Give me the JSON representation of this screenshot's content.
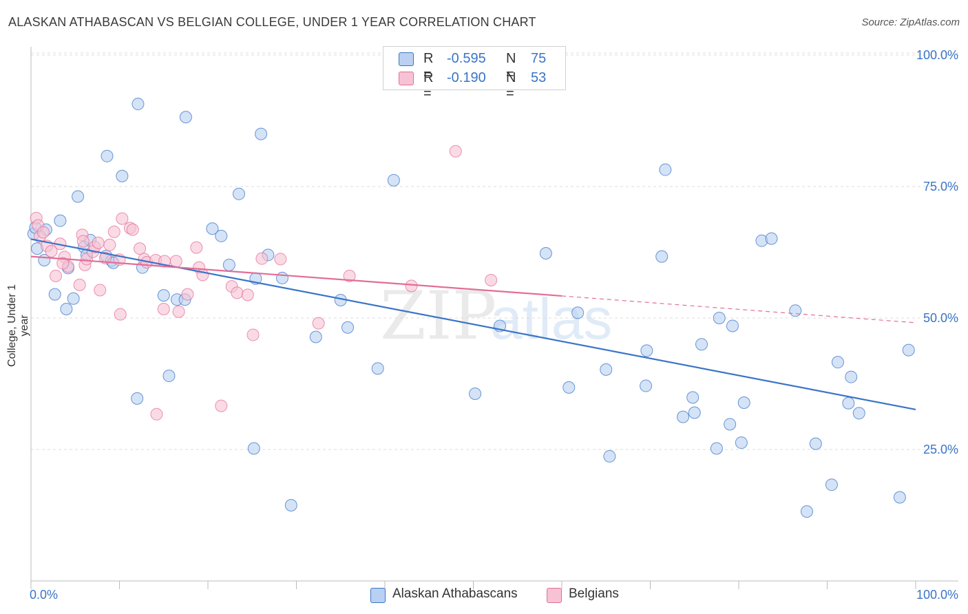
{
  "title": "ALASKAN ATHABASCAN VS BELGIAN COLLEGE, UNDER 1 YEAR CORRELATION CHART",
  "source": "Source: ZipAtlas.com",
  "colors": {
    "blue": "#3a74c7",
    "blue_fill": "#b9d0f2",
    "pink": "#e36d97",
    "pink_fill": "#f7c3d4",
    "grid": "#dddddd"
  },
  "legend_top": {
    "rows": [
      {
        "r_label": "R =",
        "r_value": "-0.595",
        "n_label": "N =",
        "n_value": "75"
      },
      {
        "r_label": "R =",
        "r_value": "-0.190",
        "n_label": "N =",
        "n_value": "53"
      }
    ]
  },
  "legend_bottom": {
    "series1": "Alaskan Athabascans",
    "series2": "Belgians"
  },
  "watermark": {
    "part1": "ZIP",
    "part2": "atlas"
  },
  "chart_data": {
    "type": "scatter",
    "title": "ALASKAN ATHABASCAN VS BELGIAN COLLEGE, UNDER 1 YEAR CORRELATION CHART",
    "xlabel": "",
    "ylabel": "College, Under 1 year",
    "xlim": [
      0,
      100
    ],
    "ylim": [
      0,
      105
    ],
    "x_tick_labels": [
      "0.0%",
      "100.0%"
    ],
    "y_tick_values": [
      100,
      75,
      50,
      25
    ],
    "y_tick_labels": [
      "100.0%",
      "75.0%",
      "50.0%",
      "25.0%"
    ],
    "grid": true,
    "series": [
      {
        "name": "Alaskan Athabascans",
        "r": -0.595,
        "n": 75,
        "trend": {
          "x": [
            0,
            100
          ],
          "y": [
            65.0,
            32.6
          ]
        },
        "points": [
          [
            0.3,
            66.0
          ],
          [
            0.7,
            63.2
          ],
          [
            1.5,
            61.0
          ],
          [
            1.7,
            66.8
          ],
          [
            2.7,
            54.5
          ],
          [
            3.3,
            68.5
          ],
          [
            4.0,
            51.7
          ],
          [
            4.2,
            59.5
          ],
          [
            4.8,
            53.7
          ],
          [
            5.3,
            73.1
          ],
          [
            6.0,
            63.5
          ],
          [
            6.3,
            62.0
          ],
          [
            6.7,
            64.8
          ],
          [
            8.5,
            61.8
          ],
          [
            8.6,
            80.8
          ],
          [
            9.1,
            60.9
          ],
          [
            9.3,
            60.5
          ],
          [
            10.3,
            77.0
          ],
          [
            12.0,
            34.7
          ],
          [
            12.1,
            90.7
          ],
          [
            12.6,
            59.6
          ],
          [
            15.0,
            54.3
          ],
          [
            15.6,
            39.0
          ],
          [
            16.5,
            53.5
          ],
          [
            17.4,
            53.5
          ],
          [
            17.5,
            88.2
          ],
          [
            20.5,
            67.0
          ],
          [
            21.5,
            65.6
          ],
          [
            22.4,
            60.1
          ],
          [
            23.5,
            73.6
          ],
          [
            25.2,
            25.2
          ],
          [
            25.4,
            57.5
          ],
          [
            26.0,
            85.0
          ],
          [
            26.8,
            62.0
          ],
          [
            28.4,
            57.6
          ],
          [
            29.4,
            14.4
          ],
          [
            32.2,
            46.4
          ],
          [
            35.0,
            53.4
          ],
          [
            35.8,
            48.2
          ],
          [
            39.2,
            40.4
          ],
          [
            41.0,
            76.2
          ],
          [
            50.2,
            35.6
          ],
          [
            53.0,
            48.5
          ],
          [
            58.2,
            62.3
          ],
          [
            60.8,
            36.8
          ],
          [
            61.8,
            51.0
          ],
          [
            65.0,
            40.2
          ],
          [
            65.4,
            23.7
          ],
          [
            69.5,
            37.1
          ],
          [
            69.6,
            43.8
          ],
          [
            71.3,
            61.7
          ],
          [
            71.7,
            78.2
          ],
          [
            73.7,
            31.2
          ],
          [
            74.8,
            34.9
          ],
          [
            75.0,
            32.0
          ],
          [
            75.8,
            45.0
          ],
          [
            77.5,
            25.2
          ],
          [
            77.8,
            50.0
          ],
          [
            79.0,
            29.8
          ],
          [
            79.3,
            48.5
          ],
          [
            80.3,
            26.3
          ],
          [
            80.6,
            33.9
          ],
          [
            82.6,
            64.7
          ],
          [
            83.7,
            65.1
          ],
          [
            86.4,
            51.4
          ],
          [
            87.7,
            13.2
          ],
          [
            88.7,
            26.1
          ],
          [
            90.5,
            18.3
          ],
          [
            91.2,
            41.6
          ],
          [
            92.4,
            33.8
          ],
          [
            92.7,
            38.8
          ],
          [
            93.6,
            31.9
          ],
          [
            98.2,
            15.9
          ],
          [
            99.2,
            43.9
          ],
          [
            0.5,
            67.2
          ]
        ]
      },
      {
        "name": "Belgians",
        "r": -0.19,
        "n": 53,
        "trend": {
          "x": [
            0,
            60
          ],
          "y": [
            61.7,
            54.2
          ]
        },
        "trend_dashed": {
          "x": [
            60,
            100
          ],
          "y": [
            54.2,
            49.1
          ]
        },
        "points": [
          [
            0.6,
            69.0
          ],
          [
            0.8,
            67.6
          ],
          [
            1.0,
            65.5
          ],
          [
            1.4,
            66.3
          ],
          [
            1.8,
            63.7
          ],
          [
            2.3,
            62.7
          ],
          [
            2.8,
            58.0
          ],
          [
            3.3,
            64.1
          ],
          [
            3.8,
            61.6
          ],
          [
            4.2,
            59.8
          ],
          [
            5.5,
            56.3
          ],
          [
            5.8,
            65.8
          ],
          [
            5.9,
            64.6
          ],
          [
            6.1,
            60.1
          ],
          [
            6.3,
            61.2
          ],
          [
            7.0,
            62.6
          ],
          [
            7.2,
            63.5
          ],
          [
            7.6,
            64.3
          ],
          [
            7.8,
            55.3
          ],
          [
            8.4,
            61.4
          ],
          [
            8.9,
            63.9
          ],
          [
            9.4,
            66.4
          ],
          [
            10.0,
            61.1
          ],
          [
            10.1,
            50.7
          ],
          [
            10.3,
            68.9
          ],
          [
            11.2,
            67.1
          ],
          [
            11.5,
            66.8
          ],
          [
            12.3,
            63.2
          ],
          [
            12.8,
            61.2
          ],
          [
            13.1,
            60.6
          ],
          [
            14.1,
            61.0
          ],
          [
            14.2,
            31.7
          ],
          [
            15.0,
            51.7
          ],
          [
            16.4,
            60.8
          ],
          [
            16.7,
            51.2
          ],
          [
            17.7,
            54.5
          ],
          [
            18.7,
            63.4
          ],
          [
            19.0,
            59.6
          ],
          [
            19.4,
            58.2
          ],
          [
            21.5,
            33.3
          ],
          [
            22.7,
            56.0
          ],
          [
            23.3,
            54.8
          ],
          [
            24.5,
            54.4
          ],
          [
            25.1,
            46.8
          ],
          [
            26.1,
            61.3
          ],
          [
            28.2,
            61.2
          ],
          [
            32.5,
            49.0
          ],
          [
            36.0,
            58.0
          ],
          [
            43.0,
            56.1
          ],
          [
            52.0,
            57.2
          ],
          [
            48.0,
            81.7
          ],
          [
            15.1,
            60.8
          ],
          [
            3.6,
            60.4
          ]
        ]
      }
    ]
  }
}
